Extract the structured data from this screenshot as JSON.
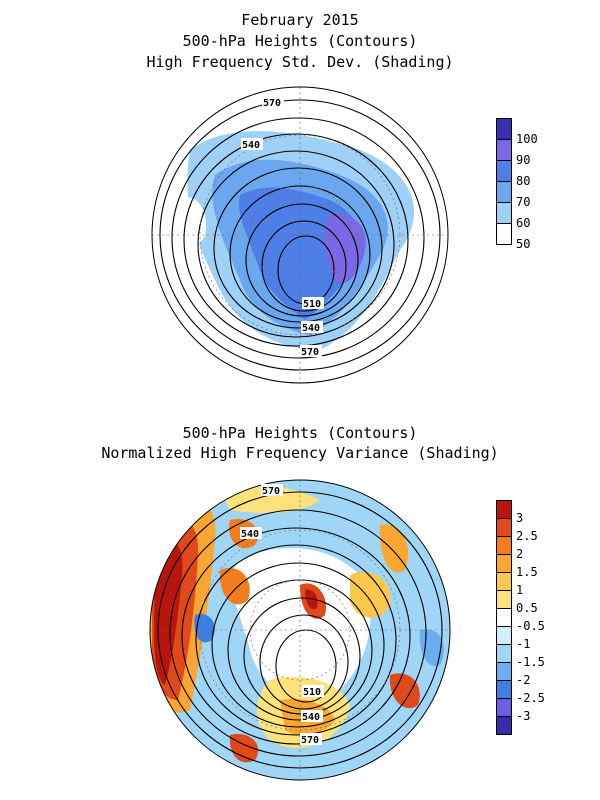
{
  "header": {
    "line1": "February 2015",
    "line2": "500-hPa Heights (Contours)",
    "line3": "High Frequency Std. Dev. (Shading)"
  },
  "panel2_header": {
    "line1": "500-hPa Heights (Contours)",
    "line2": "Normalized High Frequency Variance (Shading)"
  },
  "map1": {
    "contour_labels": [
      "570",
      "540",
      "510",
      "540",
      "570"
    ]
  },
  "map2": {
    "contour_labels": [
      "570",
      "540",
      "510",
      "540",
      "570"
    ]
  },
  "colorbar1": {
    "labels": [
      "100",
      "90",
      "80",
      "70",
      "60",
      "50"
    ],
    "colors": [
      "#3c2fb4",
      "#7a68e4",
      "#4d7fe6",
      "#6aa7ef",
      "#9fd0f6",
      "#ffffff"
    ]
  },
  "colorbar2": {
    "labels": [
      "3",
      "2.5",
      "2",
      "1.5",
      "1",
      "0.5",
      "-0.5",
      "-1",
      "-1.5",
      "-2",
      "-2.5",
      "-3"
    ],
    "colors": [
      "#b8160c",
      "#e04a1a",
      "#f27d1c",
      "#f9a632",
      "#fbc84d",
      "#fde27c",
      "#ffffff",
      "#cfeefa",
      "#9fd6f5",
      "#6aaeee",
      "#3f7ee3",
      "#6a5fe0",
      "#3a2aa8"
    ]
  }
}
